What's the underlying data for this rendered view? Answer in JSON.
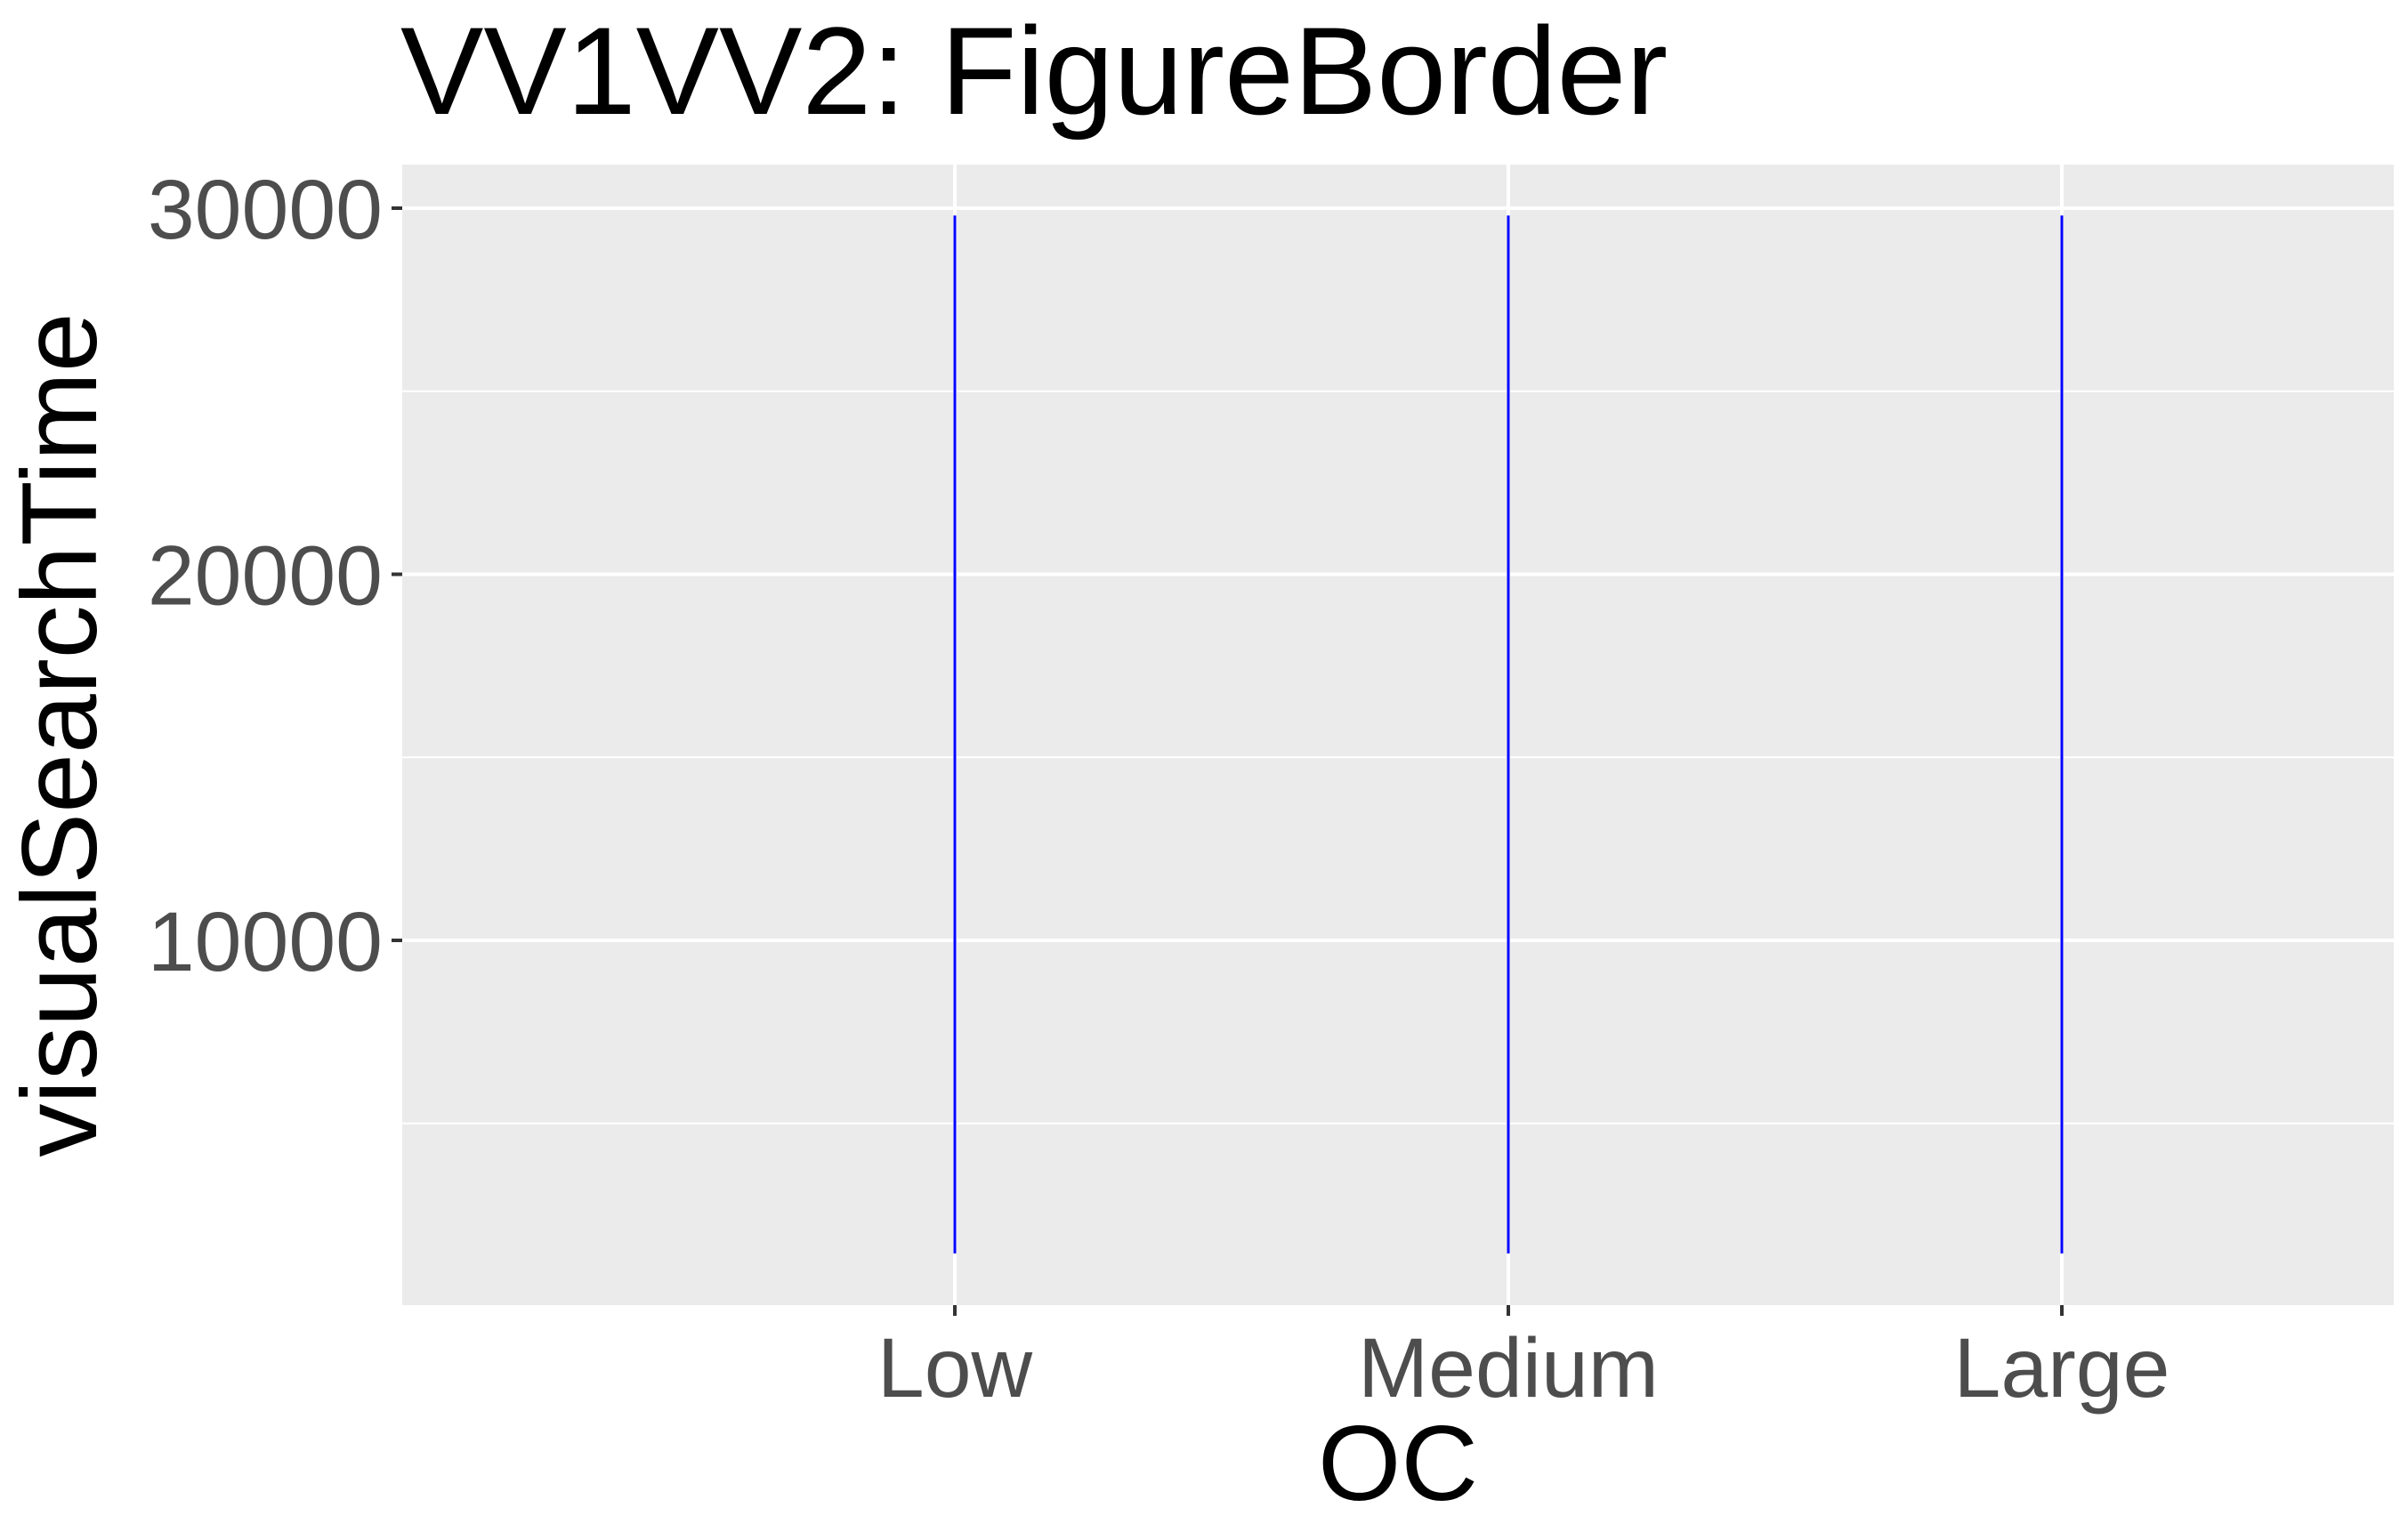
{
  "chart_data": {
    "type": "line",
    "title": "VV1VV2: FigureBorder",
    "xlabel": "OC",
    "ylabel": "visualSearchTime",
    "categories": [
      "Low",
      "Medium",
      "Large"
    ],
    "ylim": [
      0,
      30000
    ],
    "yticks": [
      10000,
      20000,
      30000
    ],
    "series": [
      {
        "values": [
          {
            "category": "Low",
            "min": 1450,
            "max": 29800
          },
          {
            "category": "Medium",
            "min": 1450,
            "max": 29800
          },
          {
            "category": "Large",
            "min": 1450,
            "max": 29800
          }
        ]
      }
    ],
    "grid": true,
    "background_color": "#ebebeb",
    "grid_color": "#ffffff",
    "line_color": "#0000ff"
  }
}
